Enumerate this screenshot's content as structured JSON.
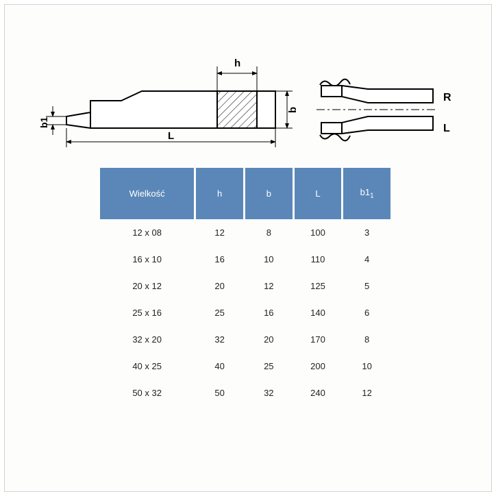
{
  "diagram": {
    "labels": {
      "h": "h",
      "b": "b",
      "b1": "b1",
      "L": "L",
      "R": "R",
      "Lside": "L"
    },
    "stroke": "#000000",
    "hatch_stroke": "#222222",
    "fill": "#ffffff"
  },
  "table": {
    "header_bg": "#5b87b8",
    "header_fg": "#ffffff",
    "columns": [
      "Wielkość",
      "h",
      "b",
      "L",
      "b1"
    ],
    "column_sub": [
      null,
      null,
      null,
      null,
      "1"
    ],
    "rows": [
      [
        "12 x 08",
        "12",
        "8",
        "100",
        "3"
      ],
      [
        "16 x 10",
        "16",
        "10",
        "110",
        "4"
      ],
      [
        "20 x 12",
        "20",
        "12",
        "125",
        "5"
      ],
      [
        "25 x 16",
        "25",
        "16",
        "140",
        "6"
      ],
      [
        "32 x 20",
        "32",
        "20",
        "170",
        "8"
      ],
      [
        "40 x 25",
        "40",
        "25",
        "200",
        "10"
      ],
      [
        "50 x 32",
        "50",
        "32",
        "240",
        "12"
      ]
    ],
    "font_size": 13
  }
}
